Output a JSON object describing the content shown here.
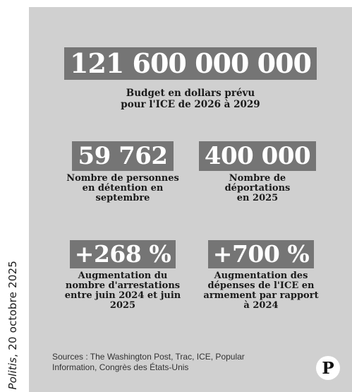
{
  "credit": {
    "source_name": "Politis",
    "date": ", 20 octobre 2025"
  },
  "stats": {
    "budget": {
      "value": "121 600 000 000",
      "label": "Budget en dollars prévu\npour l'ICE de 2026 à 2029"
    },
    "detention": {
      "value": "59 762",
      "label": "Nombre de personnes\nen détention en\nseptembre"
    },
    "deportations": {
      "value": "400 000",
      "label": "Nombre de\ndéportations\nen 2025"
    },
    "arrests": {
      "value": "+268 %",
      "label": "Augmentation du\nnombre d'arrestations\nentre juin 2024 et juin\n2025"
    },
    "armament": {
      "value": "+700 %",
      "label": "Augmentation des\ndépenses de l'ICE en\narmement par rapport\nà 2024"
    }
  },
  "sources": "Sources : The Washington Post, Trac, ICE, Popular\nInformation, Congrès des États-Unis",
  "logo": {
    "letter": "P"
  },
  "colors": {
    "panel_background": "#d0d0d0",
    "number_box": "#757575",
    "number_text": "#ffffff",
    "label_text": "#1a1a1a"
  }
}
